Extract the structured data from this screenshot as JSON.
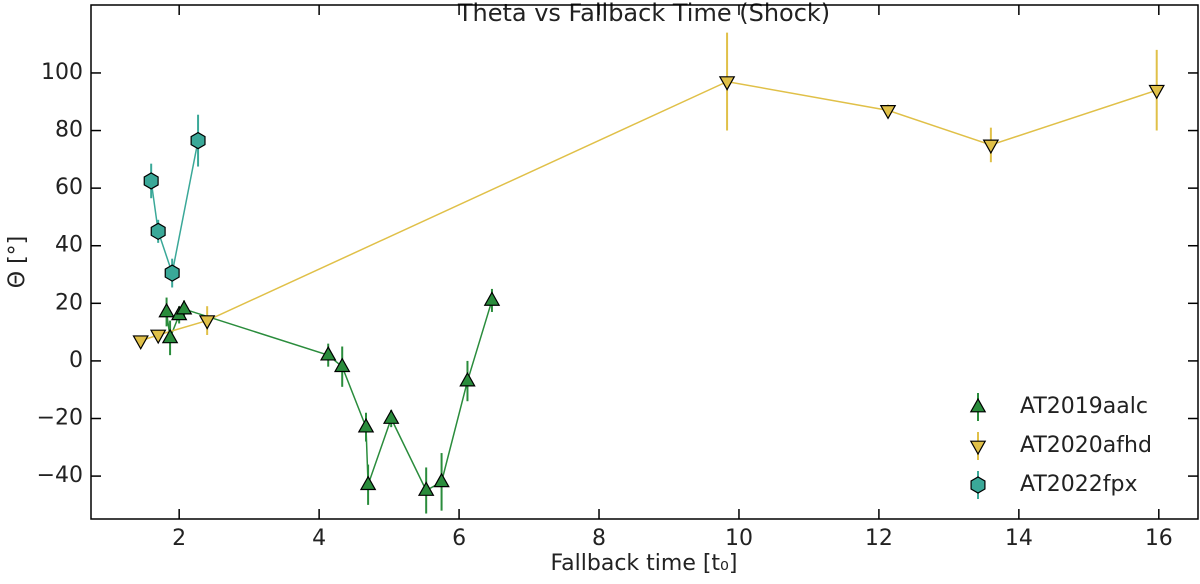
{
  "chart_data": {
    "type": "scatter",
    "title": "Theta vs Fallback Time (Shock)",
    "xlabel": "Fallback time [t₀]",
    "ylabel": "Θ [°]",
    "xlim": [
      0.74,
      16.56
    ],
    "ylim": [
      -54.9,
      123.6
    ],
    "xticks": [
      2,
      4,
      6,
      8,
      10,
      12,
      14,
      16
    ],
    "yticks": [
      {
        "value": -40,
        "label": "−40"
      },
      {
        "value": -20,
        "label": "−20"
      },
      0,
      20,
      40,
      60,
      80,
      100
    ],
    "legend": "lower right",
    "series": [
      {
        "name": "AT2019aalc",
        "color": "#2a8c3c",
        "marker": "triangle-up",
        "x": [
          1.82,
          1.87,
          2.0,
          2.07,
          4.13,
          4.33,
          4.67,
          4.7,
          5.03,
          5.53,
          5.75,
          6.12,
          6.47
        ],
        "values": [
          17,
          8,
          16,
          18,
          2,
          -2,
          -23,
          -43,
          -20,
          -45,
          -42,
          -7,
          21
        ],
        "errors": [
          5,
          6,
          3,
          3,
          4,
          7,
          5,
          7,
          3,
          8,
          10,
          7,
          4
        ]
      },
      {
        "name": "AT2020afhd",
        "color": "#e0c048",
        "marker": "triangle-down",
        "x": [
          1.45,
          1.7,
          2.4,
          9.83,
          12.13,
          13.6,
          15.97
        ],
        "values": [
          7,
          9,
          14,
          97,
          87,
          75,
          94
        ],
        "errors": [
          1,
          1,
          5,
          17,
          2,
          6,
          14
        ]
      },
      {
        "name": "AT2022fpx",
        "color": "#3aa898",
        "marker": "hexagon",
        "x": [
          1.6,
          1.7,
          1.9,
          2.27
        ],
        "values": [
          62.5,
          45,
          30.5,
          76.5
        ],
        "errors": [
          6,
          4,
          5,
          9
        ]
      }
    ]
  }
}
